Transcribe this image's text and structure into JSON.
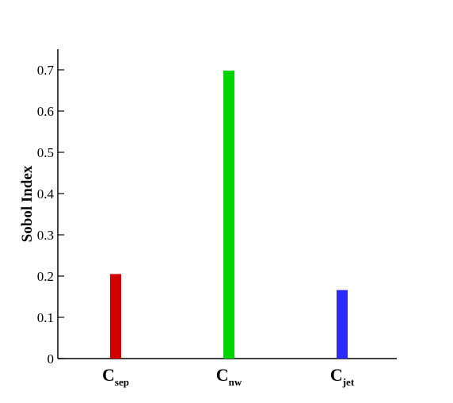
{
  "chart_data": {
    "type": "bar",
    "title": "",
    "xlabel": "",
    "ylabel": "Sobol Index",
    "ylim": [
      0,
      0.75
    ],
    "yticks": [
      "0",
      "0.1",
      "0.2",
      "0.3",
      "0.4",
      "0.5",
      "0.6",
      "0.7"
    ],
    "ytick_values": [
      0,
      0.1,
      0.2,
      0.3,
      0.4,
      0.5,
      0.6,
      0.7
    ],
    "categories": [
      {
        "main": "C",
        "sub": "sep"
      },
      {
        "main": "C",
        "sub": "nw"
      },
      {
        "main": "C",
        "sub": "jet"
      }
    ],
    "values": [
      0.205,
      0.698,
      0.166
    ],
    "colors": [
      "#d40000",
      "#00d400",
      "#2b2bff"
    ],
    "grid": false,
    "legend": "none"
  }
}
